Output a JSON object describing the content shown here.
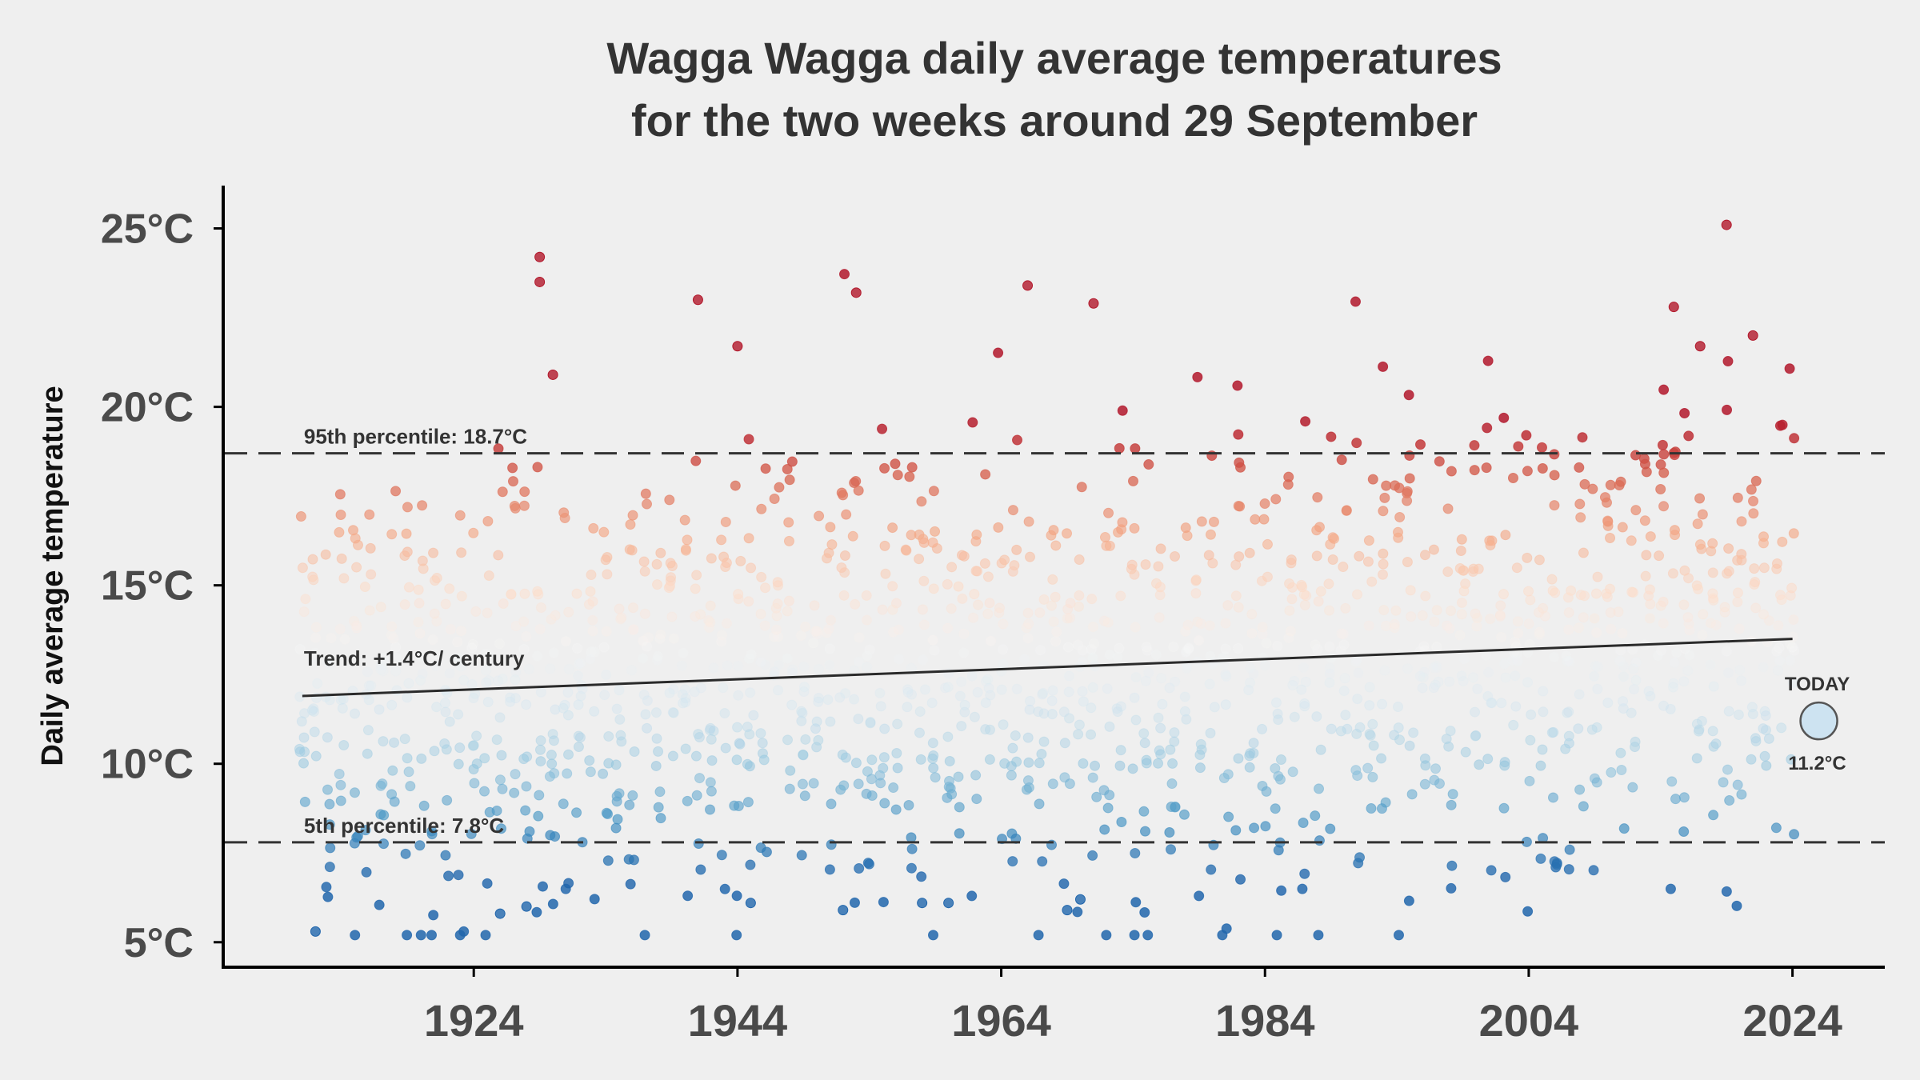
{
  "chart_data": {
    "type": "scatter",
    "title": [
      "Wagga Wagga daily average temperatures",
      "for the two weeks around 29 September"
    ],
    "ylabel": "Daily average temperature",
    "xlabel": "",
    "xlim": [
      1905,
      2031
    ],
    "ylim": [
      4.3,
      26.2
    ],
    "x_ticks": [
      1924,
      1944,
      1964,
      1984,
      2004,
      2024
    ],
    "y_ticks": [
      5,
      10,
      15,
      20,
      25
    ],
    "y_tick_labels": [
      "5°C",
      "10°C",
      "15°C",
      "20°C",
      "25°C"
    ],
    "x_range": [
      1911,
      2024
    ],
    "percentile_95": {
      "value": 18.7,
      "label": "95th percentile: 18.7°C"
    },
    "percentile_5": {
      "value": 7.8,
      "label": "5th percentile: 7.8°C"
    },
    "trend": {
      "label": "Trend: +1.4°C/ century",
      "x": [
        1911,
        2024
      ],
      "y": [
        11.9,
        13.5
      ]
    },
    "today": {
      "label": "TODAY",
      "year": 2026,
      "value": 11.2,
      "value_label": "11.2°C",
      "color": "#cde3f1"
    },
    "colormap": [
      "#2166ac",
      "#4393c3",
      "#92c5de",
      "#d1e5f0",
      "#f7f7f7",
      "#fddbc7",
      "#f4a582",
      "#d6604d",
      "#b2182b"
    ],
    "highlights": [
      [
        1912,
        5.3
      ],
      [
        1926,
        5.8
      ],
      [
        1928,
        6.0
      ],
      [
        1945,
        6.1
      ],
      [
        1952,
        5.9
      ],
      [
        1958,
        6.1
      ],
      [
        1960,
        6.1
      ],
      [
        1969,
        5.9
      ],
      [
        1970,
        6.2
      ],
      [
        1929,
        24.2
      ],
      [
        1929,
        23.5
      ],
      [
        1941,
        23.0
      ],
      [
        1953,
        23.2
      ],
      [
        1966,
        23.4
      ],
      [
        1971,
        22.9
      ],
      [
        2019,
        25.1
      ],
      [
        2015,
        22.8
      ],
      [
        2021,
        22.0
      ],
      [
        1944,
        21.7
      ],
      [
        1930,
        20.9
      ],
      [
        2017,
        21.7
      ]
    ],
    "note": "Scatter of daily values (14 days per year, 1911-2024); points drawn by script and coloured by temperature."
  }
}
